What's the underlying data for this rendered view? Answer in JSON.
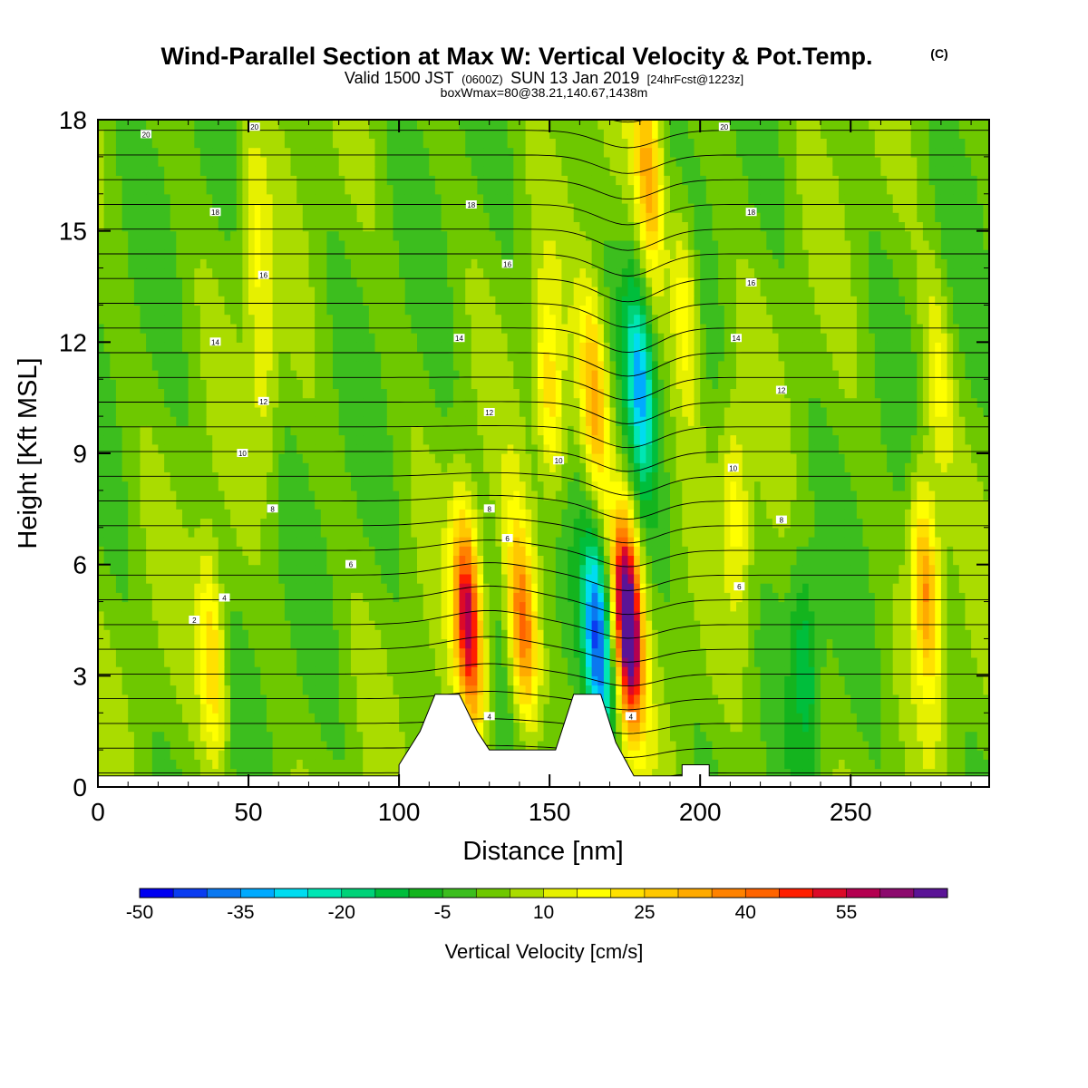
{
  "header": {
    "title": "Wind-Parallel Section at Max W: Vertical Velocity & Pot.Temp.",
    "copyright": "(C)",
    "valid_pre": "Valid 1500 JST",
    "valid_utc": "(0600Z)",
    "valid_date": "SUN 13 Jan 2019",
    "forecast": "[24hrFcst@1223z]",
    "box_info": "boxWmax=80@38.21,140.67,1438m"
  },
  "chart_data": {
    "type": "heatmap",
    "title": "Wind-Parallel Section at Max W: Vertical Velocity & Pot.Temp.",
    "xlabel": "Distance [nm]",
    "ylabel": "Height [Kft MSL]",
    "xlim": [
      0,
      296
    ],
    "ylim": [
      0,
      18
    ],
    "x_ticks": [
      "0",
      "50",
      "100",
      "150",
      "200",
      "250"
    ],
    "y_ticks": [
      "0",
      "3",
      "6",
      "9",
      "12",
      "15",
      "18"
    ],
    "x_tick_values": [
      0,
      50,
      100,
      150,
      200,
      250
    ],
    "y_tick_values": [
      0,
      3,
      6,
      9,
      12,
      15,
      18
    ],
    "colorbar": {
      "title": "Vertical Velocity [cm/s]",
      "labels": [
        "-50",
        "-35",
        "-20",
        "-5",
        "10",
        "25",
        "40",
        "55"
      ],
      "label_values": [
        -50,
        -35,
        -20,
        -5,
        10,
        25,
        40,
        55
      ],
      "levels": [
        -50,
        -45,
        -40,
        -35,
        -30,
        -25,
        -20,
        -15,
        -10,
        -5,
        0,
        5,
        10,
        15,
        20,
        25,
        30,
        35,
        40,
        45,
        50,
        55,
        60
      ],
      "colors": [
        "#0000f0",
        "#0a3cf0",
        "#0a78f0",
        "#00aaff",
        "#00dcf0",
        "#00e6b4",
        "#00d278",
        "#00be3c",
        "#14b41e",
        "#3cbe1e",
        "#6ec800",
        "#aadc00",
        "#e6f000",
        "#ffff00",
        "#ffe100",
        "#ffc800",
        "#ffaa00",
        "#ff8200",
        "#ff6400",
        "#ff1e00",
        "#dc0a28",
        "#b40050",
        "#8c0a6e",
        "#5a1496"
      ]
    },
    "contour_labels": [
      {
        "label": "20",
        "x": 16,
        "y": 17.6
      },
      {
        "label": "20",
        "x": 52,
        "y": 17.8
      },
      {
        "label": "20",
        "x": 208,
        "y": 17.8
      },
      {
        "label": "18",
        "x": 39,
        "y": 15.5
      },
      {
        "label": "18",
        "x": 124,
        "y": 15.7
      },
      {
        "label": "18",
        "x": 217,
        "y": 15.5
      },
      {
        "label": "16",
        "x": 55,
        "y": 13.8
      },
      {
        "label": "16",
        "x": 136,
        "y": 14.1
      },
      {
        "label": "16",
        "x": 217,
        "y": 13.6
      },
      {
        "label": "14",
        "x": 39,
        "y": 12.0
      },
      {
        "label": "14",
        "x": 120,
        "y": 12.1
      },
      {
        "label": "14",
        "x": 212,
        "y": 12.1
      },
      {
        "label": "12",
        "x": 55,
        "y": 10.4
      },
      {
        "label": "12",
        "x": 130,
        "y": 10.1
      },
      {
        "label": "12",
        "x": 227,
        "y": 10.7
      },
      {
        "label": "10",
        "x": 48,
        "y": 9.0
      },
      {
        "label": "10",
        "x": 153,
        "y": 8.8
      },
      {
        "label": "10",
        "x": 211,
        "y": 8.6
      },
      {
        "label": "8",
        "x": 58,
        "y": 7.5
      },
      {
        "label": "8",
        "x": 130,
        "y": 7.5
      },
      {
        "label": "8",
        "x": 227,
        "y": 7.2
      },
      {
        "label": "6",
        "x": 84,
        "y": 6.0
      },
      {
        "label": "6",
        "x": 136,
        "y": 6.7
      },
      {
        "label": "6",
        "x": 213,
        "y": 5.4
      },
      {
        "label": "4",
        "x": 42,
        "y": 5.1
      },
      {
        "label": "4",
        "x": 130,
        "y": 1.9
      },
      {
        "label": "4",
        "x": 177,
        "y": 1.9
      },
      {
        "label": "2",
        "x": 32,
        "y": 4.5
      }
    ],
    "features": [
      {
        "x": 38,
        "z": 3.5,
        "w": 24
      },
      {
        "x": 52,
        "z": 15,
        "w": 12
      },
      {
        "x": 55,
        "z": 11,
        "w": 10
      },
      {
        "x": 123,
        "z": 4.5,
        "w": 55
      },
      {
        "x": 141,
        "z": 4.3,
        "w": 40
      },
      {
        "x": 150,
        "z": 10.5,
        "w": 22
      },
      {
        "x": 165,
        "z": 10.5,
        "w": 30
      },
      {
        "x": 166,
        "z": 4.0,
        "w": -40
      },
      {
        "x": 176,
        "z": 4.5,
        "w": 75
      },
      {
        "x": 180,
        "z": 11,
        "w": -30
      },
      {
        "x": 183,
        "z": 16.5,
        "w": 30
      },
      {
        "x": 195,
        "z": 13,
        "w": 20
      },
      {
        "x": 212,
        "z": 7.5,
        "w": 15
      },
      {
        "x": 275,
        "z": 5.5,
        "w": 35
      },
      {
        "x": 279,
        "z": 11,
        "w": 14
      },
      {
        "x": 235,
        "z": 3.5,
        "w": -15
      }
    ],
    "terrain": [
      {
        "x": 0,
        "z": 0.3
      },
      {
        "x": 100,
        "z": 0.3
      },
      {
        "x": 100,
        "z": 0.6
      },
      {
        "x": 107,
        "z": 1.5
      },
      {
        "x": 112,
        "z": 2.5
      },
      {
        "x": 120,
        "z": 2.5
      },
      {
        "x": 126,
        "z": 1.5
      },
      {
        "x": 130,
        "z": 1.0
      },
      {
        "x": 138,
        "z": 1.0
      },
      {
        "x": 152,
        "z": 1.0
      },
      {
        "x": 158,
        "z": 2.5
      },
      {
        "x": 167,
        "z": 2.5
      },
      {
        "x": 172,
        "z": 1.2
      },
      {
        "x": 178,
        "z": 0.3
      },
      {
        "x": 194,
        "z": 0.3
      },
      {
        "x": 194,
        "z": 0.6
      },
      {
        "x": 203,
        "z": 0.6
      },
      {
        "x": 203,
        "z": 0.3
      },
      {
        "x": 296,
        "z": 0.3
      }
    ]
  }
}
